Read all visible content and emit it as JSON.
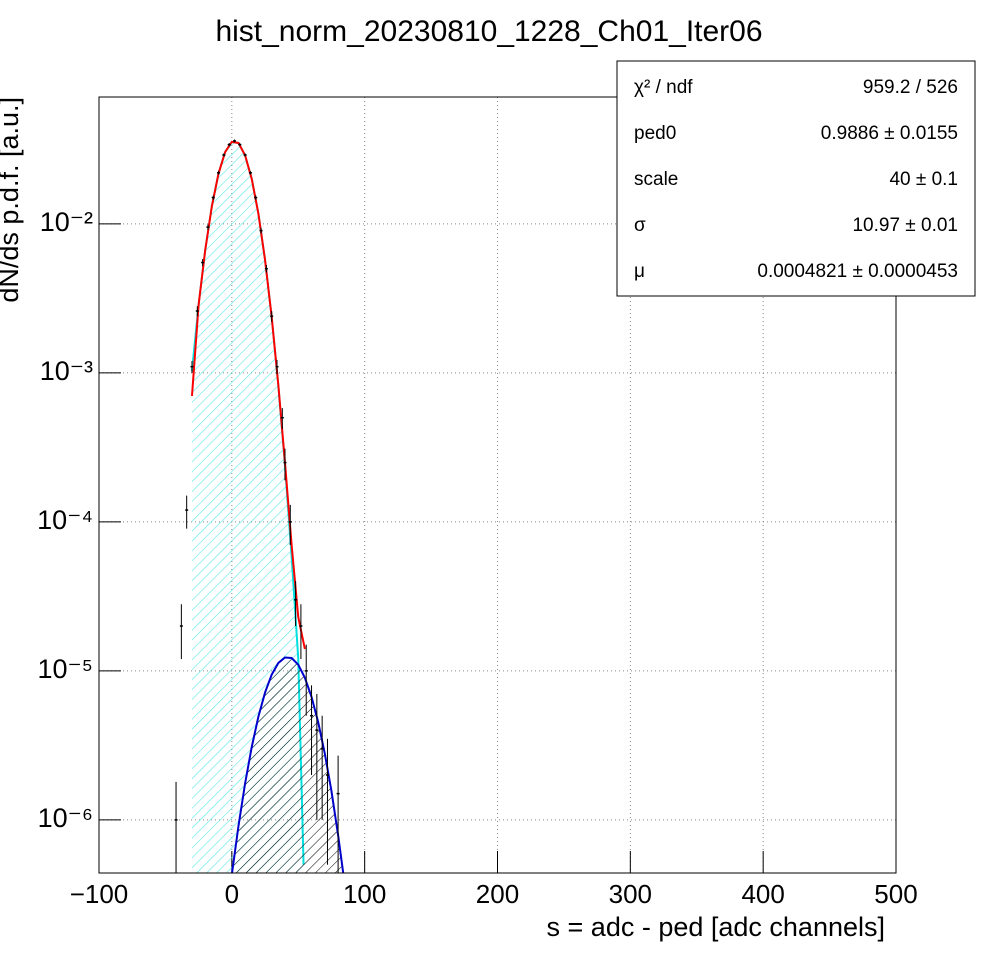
{
  "chart_data": {
    "type": "line",
    "title": "hist_norm_20230810_1228_Ch01_Iter06",
    "xlabel": "s = adc - ped [adc channels]",
    "ylabel": "dN/ds p.d.f. [a.u.]",
    "log_y": true,
    "grid": true,
    "xlim": [
      -100,
      500
    ],
    "ylim": [
      4.4e-07,
      0.071
    ],
    "xticks": [
      {
        "value": -100,
        "label": "−100"
      },
      0,
      100,
      200,
      300,
      400,
      500
    ],
    "yticks": [
      {
        "value": 1e-06,
        "label": "10⁻⁶"
      },
      {
        "value": 1e-05,
        "label": "10⁻⁵"
      },
      {
        "value": 0.0001,
        "label": "10⁻⁴"
      },
      {
        "value": 0.001,
        "label": "10⁻³"
      },
      {
        "value": 0.01,
        "label": "10⁻²"
      }
    ],
    "histogram": {
      "color": "#000000",
      "x": [
        -42,
        -38,
        -34,
        -30,
        -26,
        -22,
        -18,
        -14,
        -10,
        -6,
        -2,
        2,
        6,
        10,
        14,
        18,
        22,
        26,
        30,
        34,
        38,
        40,
        44,
        48,
        52,
        56,
        60,
        64,
        68,
        72,
        80
      ],
      "values": [
        1e-06,
        2e-05,
        0.00012,
        0.0011,
        0.0026,
        0.0055,
        0.0095,
        0.015,
        0.022,
        0.029,
        0.034,
        0.036,
        0.034,
        0.029,
        0.022,
        0.015,
        0.009,
        0.005,
        0.0024,
        0.0011,
        0.0005,
        0.00025,
        0.0001,
        3e-05,
        2e-05,
        1e-05,
        5e-06,
        4e-06,
        3e-06,
        2e-06,
        1.5e-06
      ],
      "errors": [
        8e-07,
        8e-06,
        3e-05,
        0.0001,
        0.0002,
        0.0003,
        0.0004,
        0.0005,
        0.0006,
        0.0007,
        0.0008,
        0.0008,
        0.0008,
        0.0007,
        0.0006,
        0.0005,
        0.0004,
        0.0003,
        0.0002,
        0.00012,
        8e-05,
        6e-05,
        3e-05,
        1e-05,
        8e-06,
        5e-06,
        3e-06,
        3e-06,
        2e-06,
        1.5e-06,
        1.2e-06
      ]
    },
    "series": [
      {
        "color": "#00e0e0",
        "hatch": true,
        "x": [
          -30,
          -25,
          -20,
          -15,
          -10,
          -5,
          0,
          5,
          10,
          15,
          20,
          25,
          30,
          35,
          40,
          45,
          50,
          54
        ],
        "values": [
          0.00103,
          0.00287,
          0.0067,
          0.0132,
          0.0218,
          0.0304,
          0.0355,
          0.0349,
          0.0288,
          0.02,
          0.0117,
          0.00573,
          0.00237,
          0.000821,
          0.000239,
          5.86e-05,
          1.21e-05,
          5e-07
        ]
      },
      {
        "color": "#0000cc",
        "hatch": true,
        "x": [
          0,
          5,
          10,
          15,
          20,
          25,
          30,
          35,
          40,
          45,
          50,
          55,
          60,
          65,
          70,
          75,
          80,
          85
        ],
        "values": [
          4.3e-07,
          9.1e-07,
          1.76e-06,
          3.09e-06,
          4.93e-06,
          7.15e-06,
          9.43e-06,
          1.13e-05,
          1.23e-05,
          1.22e-05,
          1.1e-05,
          8.99e-06,
          6.69e-06,
          4.53e-06,
          2.78e-06,
          1.56e-06,
          7.9e-07,
          3.7e-07
        ]
      },
      {
        "color": "#ff0000",
        "hatch": false,
        "x": [
          -30,
          -25,
          -20,
          -15,
          -10,
          -5,
          0,
          5,
          10,
          15,
          20,
          25,
          30,
          35,
          40,
          45,
          50,
          55
        ],
        "values": [
          0.0007,
          0.00287,
          0.0067,
          0.0132,
          0.0218,
          0.0304,
          0.0355,
          0.0349,
          0.0288,
          0.02,
          0.0117,
          0.00573,
          0.00237,
          0.00083,
          0.00025,
          7e-05,
          2.3e-05,
          1.4e-05
        ]
      }
    ],
    "stats": {
      "rows": [
        [
          "χ² / ndf",
          "959.2 / 526"
        ],
        [
          "ped0",
          "0.9886 ± 0.0155"
        ],
        [
          "scale",
          "40 ± 0.1"
        ],
        [
          "σ",
          "10.97 ± 0.01"
        ],
        [
          "μ",
          "0.0004821 ± 0.0000453"
        ]
      ]
    }
  }
}
